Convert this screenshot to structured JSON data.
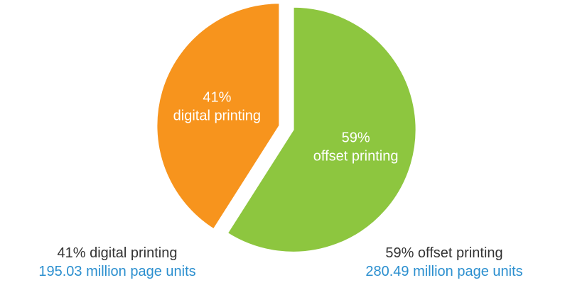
{
  "chart_data": {
    "type": "pie",
    "slices": [
      {
        "name": "digital printing",
        "value": 41,
        "pct_label": "41%",
        "label": "digital printing",
        "color": "#f7941d",
        "caption_title": "41% digital printing",
        "caption_sub": "195.03 million page units"
      },
      {
        "name": "offset printing",
        "value": 59,
        "pct_label": "59%",
        "label": "offset printing",
        "color": "#8dc63f",
        "caption_title": "59% offset printing",
        "caption_sub": "280.49 million page units"
      }
    ],
    "exploded": true,
    "legend": "none",
    "label_color": "#ffffff",
    "caption_color": "#333333",
    "units_color": "#2b8fcf"
  }
}
